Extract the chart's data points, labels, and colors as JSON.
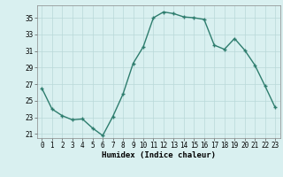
{
  "x": [
    0,
    1,
    2,
    3,
    4,
    5,
    6,
    7,
    8,
    9,
    10,
    11,
    12,
    13,
    14,
    15,
    16,
    17,
    18,
    19,
    20,
    21,
    22,
    23
  ],
  "y": [
    26.5,
    24.0,
    23.2,
    22.7,
    22.8,
    21.7,
    20.8,
    23.1,
    25.8,
    29.5,
    31.5,
    35.0,
    35.7,
    35.5,
    35.1,
    35.0,
    34.8,
    31.7,
    31.2,
    32.5,
    31.1,
    29.3,
    26.8,
    24.2
  ],
  "line_color": "#2e7d6e",
  "marker": "+",
  "marker_size": 3,
  "xlabel": "Humidex (Indice chaleur)",
  "xlim": [
    -0.5,
    23.5
  ],
  "ylim": [
    20.5,
    36.5
  ],
  "yticks": [
    21,
    23,
    25,
    27,
    29,
    31,
    33,
    35
  ],
  "xticks": [
    0,
    1,
    2,
    3,
    4,
    5,
    6,
    7,
    8,
    9,
    10,
    11,
    12,
    13,
    14,
    15,
    16,
    17,
    18,
    19,
    20,
    21,
    22,
    23
  ],
  "bg_color": "#d9f0f0",
  "grid_color": "#b8d8d8",
  "tick_fontsize": 5.5,
  "label_fontsize": 6.5,
  "linewidth": 1.0,
  "markeredgewidth": 1.0
}
